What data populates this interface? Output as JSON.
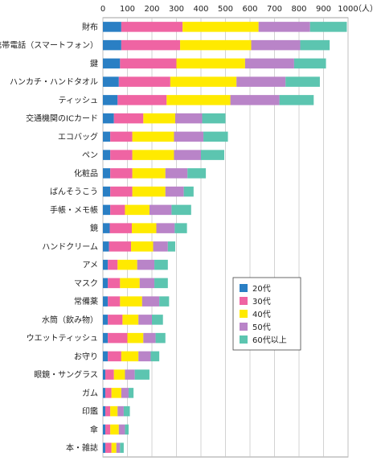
{
  "chart_data": {
    "type": "bar",
    "orientation": "horizontal",
    "stacked": true,
    "unit_label": "（人）",
    "xlim": [
      0,
      1000
    ],
    "xticks": [
      0,
      100,
      200,
      300,
      400,
      500,
      600,
      700,
      800,
      900,
      1000
    ],
    "grid": true,
    "legend_position": "center-right",
    "categories": [
      "財布",
      "携帯電話（スマートフォン）",
      "鍵",
      "ハンカチ・ハンドタオル",
      "ティッシュ",
      "交通機関のICカード",
      "エコバッグ",
      "ペン",
      "化粧品",
      "ばんそうこう",
      "手帳・メモ帳",
      "鏡",
      "ハンドクリーム",
      "アメ",
      "マスク",
      "常備薬",
      "水筒（飲み物）",
      "ウエットティッシュ",
      "お守り",
      "眼鏡・サングラス",
      "ガム",
      "印鑑",
      "傘",
      "本・雑誌"
    ],
    "series": [
      {
        "name": "20代",
        "color": "#2a7fc4",
        "values": [
          75,
          75,
          70,
          65,
          60,
          45,
          30,
          30,
          30,
          30,
          30,
          28,
          25,
          20,
          20,
          20,
          20,
          20,
          20,
          10,
          10,
          10,
          10,
          10
        ]
      },
      {
        "name": "30代",
        "color": "#ef64a3",
        "values": [
          250,
          240,
          230,
          210,
          200,
          120,
          90,
          90,
          90,
          90,
          60,
          90,
          90,
          40,
          50,
          50,
          60,
          80,
          55,
          35,
          25,
          20,
          20,
          25
        ]
      },
      {
        "name": "40代",
        "color": "#ffea00",
        "values": [
          310,
          290,
          280,
          270,
          260,
          130,
          170,
          170,
          135,
          135,
          100,
          100,
          90,
          80,
          80,
          90,
          65,
          65,
          70,
          45,
          40,
          30,
          35,
          20
        ]
      },
      {
        "name": "50代",
        "color": "#b984c8",
        "values": [
          210,
          200,
          200,
          200,
          200,
          110,
          120,
          110,
          90,
          75,
          90,
          75,
          60,
          70,
          60,
          70,
          55,
          50,
          50,
          40,
          30,
          25,
          25,
          15
        ]
      },
      {
        "name": "60代以上",
        "color": "#5cc5b0",
        "values": [
          150,
          120,
          130,
          140,
          140,
          95,
          100,
          95,
          75,
          40,
          80,
          50,
          30,
          55,
          55,
          40,
          45,
          40,
          35,
          60,
          20,
          25,
          15,
          15
        ]
      }
    ]
  }
}
